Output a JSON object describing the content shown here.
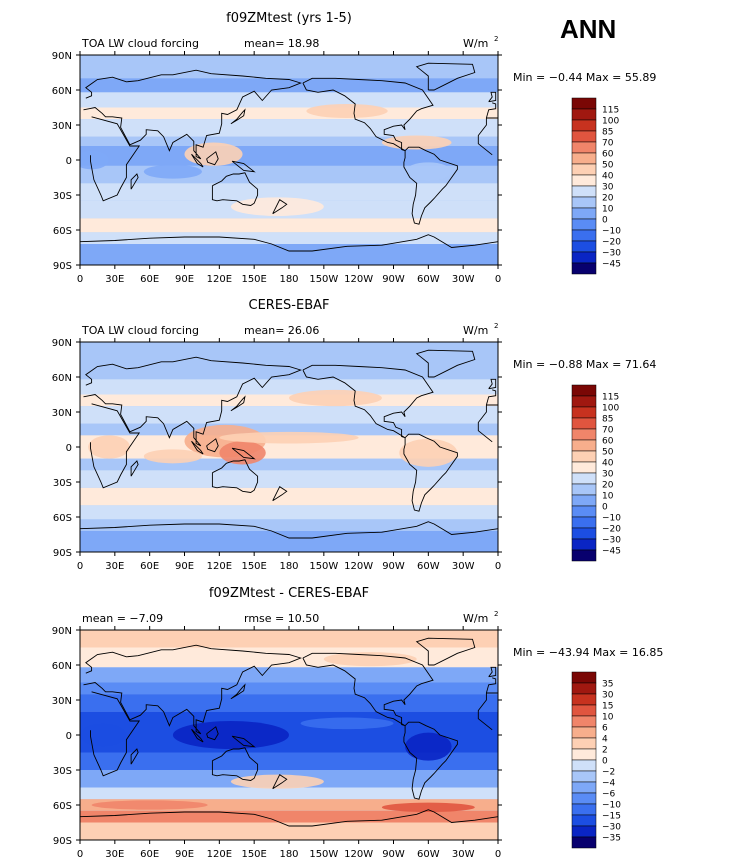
{
  "season": "ANN",
  "palettes": {
    "abs": [
      "#08006e",
      "#0a25c4",
      "#1c4ee2",
      "#3a6fef",
      "#5a8cf5",
      "#7ea8f7",
      "#a8c6f8",
      "#cfe0f9",
      "#ffeadb",
      "#fdd0b4",
      "#f7ae8c",
      "#f0856a",
      "#e0553f",
      "#c7321f",
      "#a01810",
      "#7a0705"
    ],
    "diff": [
      "#08006e",
      "#0a25c4",
      "#1c4ee2",
      "#3a6fef",
      "#5a8cf5",
      "#7ea8f7",
      "#a8c6f8",
      "#cfe0f9",
      "#ffeadb",
      "#fdd0b4",
      "#f7ae8c",
      "#f0856a",
      "#e0553f",
      "#c7321f",
      "#a01810",
      "#7a0705"
    ]
  },
  "lon_ticks": [
    "0",
    "30E",
    "60E",
    "90E",
    "120E",
    "150E",
    "180",
    "150W",
    "120W",
    "90W",
    "60W",
    "30W",
    "0"
  ],
  "lat_ticks": [
    "90N",
    "60N",
    "30N",
    "0",
    "30S",
    "60S",
    "90S"
  ],
  "panels": [
    {
      "title": "f09ZMtest (yrs 1-5)",
      "left_label": "TOA LW cloud forcing",
      "center_label": "mean=  18.98",
      "right_label": "W/m",
      "right_sup": "2",
      "minmax": "Min =  −0.44  Max =  55.89",
      "legend": [
        "115",
        "100",
        "85",
        "70",
        "60",
        "50",
        "40",
        "30",
        "20",
        "10",
        "0",
        "−10",
        "−20",
        "−30",
        "−45"
      ],
      "palette": "abs"
    },
    {
      "title": "CERES-EBAF",
      "left_label": "TOA LW cloud forcing",
      "center_label": "mean=  26.06",
      "right_label": "W/m",
      "right_sup": "2",
      "minmax": "Min =  −0.88  Max =  71.64",
      "legend": [
        "115",
        "100",
        "85",
        "70",
        "60",
        "50",
        "40",
        "30",
        "20",
        "10",
        "0",
        "−10",
        "−20",
        "−30",
        "−45"
      ],
      "palette": "abs"
    },
    {
      "title": "f09ZMtest - CERES-EBAF",
      "left_label": "mean =   −7.09",
      "center_label": "rmse =   10.50",
      "right_label": "W/m",
      "right_sup": "2",
      "minmax": "Min = −43.94  Max =  16.85",
      "legend": [
        "35",
        "30",
        "15",
        "10",
        "6",
        "4",
        "2",
        "0",
        "−2",
        "−4",
        "−6",
        "−10",
        "−15",
        "−30",
        "−35"
      ],
      "palette": "diff"
    }
  ],
  "chart_data": [
    {
      "type": "heatmap",
      "title": "f09ZMtest (yrs 1-5)",
      "field": "TOA LW cloud forcing",
      "units": "W/m2",
      "x_range": [
        "0",
        "0"
      ],
      "y_range": [
        "90S",
        "90N"
      ],
      "stats": {
        "mean": 18.98,
        "min": -0.44,
        "max": 55.89
      },
      "contour_levels": [
        -45,
        -30,
        -20,
        -10,
        0,
        10,
        20,
        30,
        40,
        50,
        60,
        70,
        85,
        100,
        115
      ]
    },
    {
      "type": "heatmap",
      "title": "CERES-EBAF",
      "field": "TOA LW cloud forcing",
      "units": "W/m2",
      "x_range": [
        "0",
        "0"
      ],
      "y_range": [
        "90S",
        "90N"
      ],
      "stats": {
        "mean": 26.06,
        "min": -0.88,
        "max": 71.64
      },
      "contour_levels": [
        -45,
        -30,
        -20,
        -10,
        0,
        10,
        20,
        30,
        40,
        50,
        60,
        70,
        85,
        100,
        115
      ]
    },
    {
      "type": "heatmap",
      "title": "f09ZMtest - CERES-EBAF",
      "units": "W/m2",
      "x_range": [
        "0",
        "0"
      ],
      "y_range": [
        "90S",
        "90N"
      ],
      "stats": {
        "mean": -7.09,
        "rmse": 10.5,
        "min": -43.94,
        "max": 16.85
      },
      "contour_levels": [
        -35,
        -30,
        -15,
        -10,
        -6,
        -4,
        -2,
        0,
        2,
        4,
        6,
        10,
        15,
        30,
        35
      ]
    }
  ]
}
